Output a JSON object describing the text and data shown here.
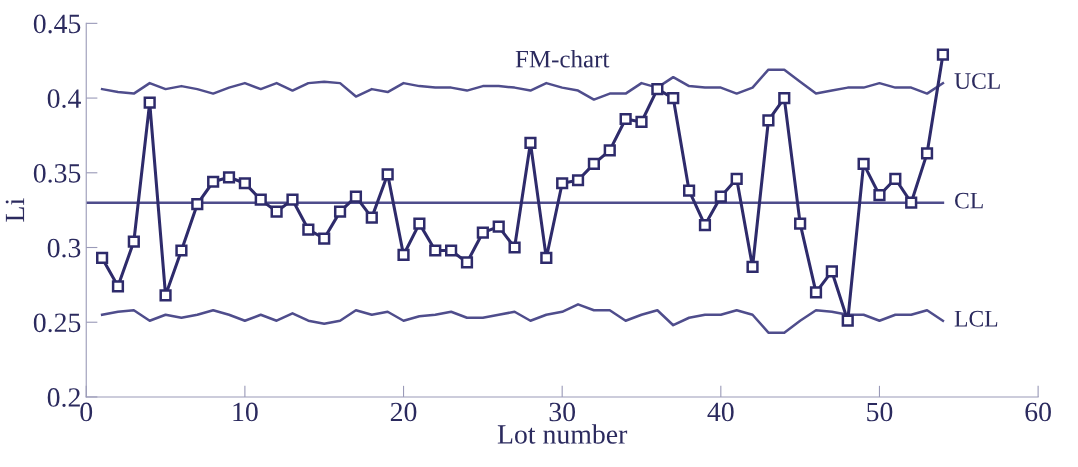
{
  "chart_data": {
    "type": "line",
    "title": "FM-chart",
    "xlabel": "Lot number",
    "ylabel": "Li",
    "x": [
      1,
      2,
      3,
      4,
      5,
      6,
      7,
      8,
      9,
      10,
      11,
      12,
      13,
      14,
      15,
      16,
      17,
      18,
      19,
      20,
      21,
      22,
      23,
      24,
      25,
      26,
      27,
      28,
      29,
      30,
      31,
      32,
      33,
      34,
      35,
      36,
      37,
      38,
      39,
      40,
      41,
      42,
      43,
      44,
      45,
      46,
      47,
      48,
      49,
      50,
      51,
      52,
      53,
      54
    ],
    "series": [
      {
        "color": "#2e2b6b",
        "marker": "square",
        "values": [
          0.293,
          0.274,
          0.304,
          0.397,
          0.268,
          0.298,
          0.329,
          0.344,
          0.347,
          0.343,
          0.332,
          0.324,
          0.332,
          0.312,
          0.306,
          0.324,
          0.334,
          0.32,
          0.349,
          0.295,
          0.316,
          0.298,
          0.298,
          0.29,
          0.31,
          0.314,
          0.3,
          0.37,
          0.293,
          0.343,
          0.345,
          0.356,
          0.365,
          0.386,
          0.384,
          0.406,
          0.4,
          0.338,
          0.315,
          0.334,
          0.346,
          0.287,
          0.385,
          0.4,
          0.316,
          0.27,
          0.284,
          0.251,
          0.356,
          0.335,
          0.346,
          0.33,
          0.363,
          0.429
        ]
      },
      {
        "name": "UCL",
        "color": "#4f4d8c",
        "marker": "none",
        "values": [
          0.406,
          0.404,
          0.403,
          0.41,
          0.406,
          0.408,
          0.406,
          0.403,
          0.407,
          0.41,
          0.406,
          0.41,
          0.405,
          0.41,
          0.411,
          0.41,
          0.401,
          0.406,
          0.404,
          0.41,
          0.408,
          0.407,
          0.407,
          0.405,
          0.408,
          0.408,
          0.407,
          0.405,
          0.41,
          0.407,
          0.405,
          0.399,
          0.403,
          0.403,
          0.41,
          0.407,
          0.414,
          0.408,
          0.407,
          0.407,
          0.403,
          0.407,
          0.419,
          0.419,
          0.411,
          0.403,
          0.405,
          0.407,
          0.407,
          0.41,
          0.407,
          0.407,
          0.403,
          0.41
        ]
      },
      {
        "name": "LCL",
        "color": "#4f4d8c",
        "marker": "none",
        "values": [
          0.255,
          0.257,
          0.258,
          0.251,
          0.255,
          0.253,
          0.255,
          0.258,
          0.255,
          0.251,
          0.255,
          0.251,
          0.256,
          0.251,
          0.249,
          0.251,
          0.258,
          0.255,
          0.257,
          0.251,
          0.254,
          0.255,
          0.257,
          0.253,
          0.253,
          0.255,
          0.257,
          0.251,
          0.255,
          0.257,
          0.262,
          0.258,
          0.258,
          0.251,
          0.255,
          0.258,
          0.248,
          0.253,
          0.255,
          0.255,
          0.258,
          0.255,
          0.243,
          0.243,
          0.251,
          0.258,
          0.257,
          0.255,
          0.255,
          0.251,
          0.255,
          0.255,
          0.258,
          0.251
        ]
      }
    ],
    "ref_lines": [
      {
        "axis": "y",
        "value": 0.33,
        "label": "CL",
        "color": "#4f4d8c",
        "line_style": "solid"
      }
    ],
    "xlim": [
      0,
      60
    ],
    "xticks": [
      0,
      10,
      20,
      30,
      40,
      50,
      60
    ],
    "ylim": [
      0.2,
      0.45
    ],
    "yticks": [
      0.2,
      0.25,
      0.3,
      0.35,
      0.4,
      0.45
    ],
    "grid": false,
    "legend": false
  }
}
